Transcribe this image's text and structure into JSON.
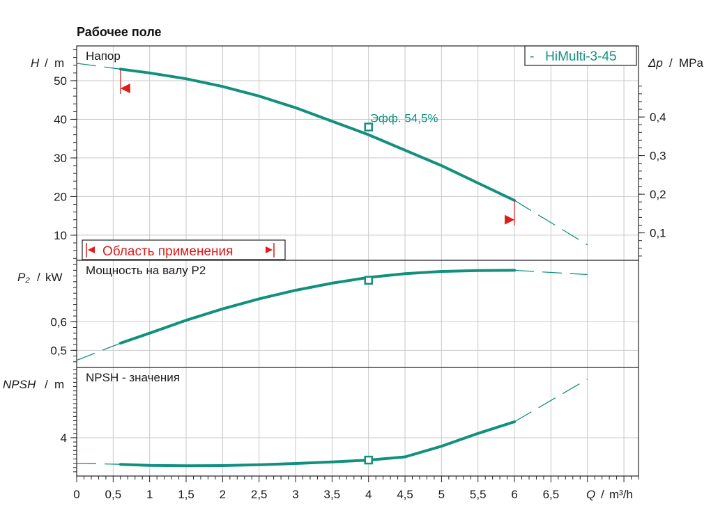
{
  "page_title": "Рабочее поле",
  "colors": {
    "curve": "#12907e",
    "marker": "#e01b1b",
    "grid": "#c8c8c8",
    "axis": "#222222"
  },
  "chart_data": [
    {
      "type": "line",
      "panel": "head",
      "title": "Напор",
      "ylabel_symbol": "H",
      "ylabel_unit": "m",
      "y2label_symbol": "Δp",
      "y2label_unit": "MPa",
      "xlim": [
        0,
        7.7
      ],
      "ylim": [
        3.5,
        59
      ],
      "yticks": [
        10,
        20,
        30,
        40,
        50
      ],
      "ytick_labels": [
        "10",
        "20",
        "30",
        "40",
        "50"
      ],
      "y2ticks": [
        0.1,
        0.2,
        0.3,
        0.4
      ],
      "y2tick_labels": [
        "0,1",
        "0,2",
        "0,3",
        "0,4"
      ],
      "legend": {
        "text": "-   HiMulti-3-45",
        "position": "top-right"
      },
      "application_range_label": "Область применения",
      "efficiency_label": "Эфф.  54,5%",
      "series": [
        {
          "name": "HiMulti-3-45",
          "x": [
            0.6,
            1.0,
            1.5,
            2.0,
            2.5,
            3.0,
            3.5,
            4.0,
            4.5,
            5.0,
            5.5,
            6.0
          ],
          "y": [
            53.0,
            52.0,
            50.5,
            48.5,
            46.0,
            43.0,
            39.5,
            36.0,
            32.0,
            28.0,
            23.5,
            19.0
          ]
        }
      ],
      "extrapolation": {
        "x": [
          0,
          0.6,
          6.0,
          7.0
        ],
        "y": [
          54.5,
          53.0,
          19.0,
          7.5
        ]
      },
      "duty_point": {
        "x": 4.0,
        "y": 38
      },
      "range_markers": [
        {
          "x": 0.6,
          "y": 48
        },
        {
          "x": 6.0,
          "y": 14
        }
      ]
    },
    {
      "type": "line",
      "panel": "power",
      "title": "Мощность на валу P2",
      "ylabel_symbol": "P₂",
      "ylabel_unit": "kW",
      "xlim": [
        0,
        7.7
      ],
      "ylim": [
        0.44,
        0.815
      ],
      "yticks": [
        0.5,
        0.6
      ],
      "ytick_labels": [
        "0,5",
        "0,6"
      ],
      "series": [
        {
          "name": "P2",
          "x": [
            0.6,
            1.0,
            1.5,
            2.0,
            2.5,
            3.0,
            3.5,
            4.0,
            4.5,
            5.0,
            5.5,
            6.0
          ],
          "y": [
            0.525,
            0.56,
            0.605,
            0.645,
            0.68,
            0.71,
            0.735,
            0.755,
            0.768,
            0.776,
            0.779,
            0.78
          ]
        }
      ],
      "extrapolation": {
        "x": [
          0,
          0.6,
          6.0,
          7.0
        ],
        "y": [
          0.465,
          0.525,
          0.78,
          0.765
        ]
      },
      "duty_point": {
        "x": 4.0,
        "y": 0.745
      }
    },
    {
      "type": "line",
      "panel": "npsh",
      "title": "NPSH - значения",
      "ylabel_symbol": "NPSH",
      "ylabel_unit": "m",
      "xlabel_symbol": "Q",
      "xlabel_unit": "m³/h",
      "xlim": [
        0,
        7.7
      ],
      "xticks": [
        0,
        0.5,
        1,
        1.5,
        2,
        2.5,
        3,
        3.5,
        4,
        4.5,
        5,
        5.5,
        6,
        6.5
      ],
      "xtick_labels": [
        "0",
        "0,5",
        "1",
        "1,5",
        "2",
        "2,5",
        "3",
        "3,5",
        "4",
        "4,5",
        "5",
        "5,5",
        "6",
        "6,5"
      ],
      "ylim": [
        2.2,
        7.3
      ],
      "yticks": [
        4
      ],
      "ytick_labels": [
        "4"
      ],
      "series": [
        {
          "name": "NPSH",
          "x": [
            0.6,
            1.0,
            1.5,
            2.0,
            2.5,
            3.0,
            3.5,
            4.0,
            4.5,
            5.0,
            5.5,
            6.0
          ],
          "y": [
            2.75,
            2.7,
            2.68,
            2.69,
            2.73,
            2.79,
            2.86,
            2.95,
            3.1,
            3.6,
            4.2,
            4.75
          ]
        }
      ],
      "extrapolation": {
        "x": [
          0,
          0.6,
          6.0,
          7.0
        ],
        "y": [
          2.8,
          2.75,
          4.75,
          6.75
        ]
      },
      "duty_point": {
        "x": 4.0,
        "y": 2.95
      }
    }
  ]
}
